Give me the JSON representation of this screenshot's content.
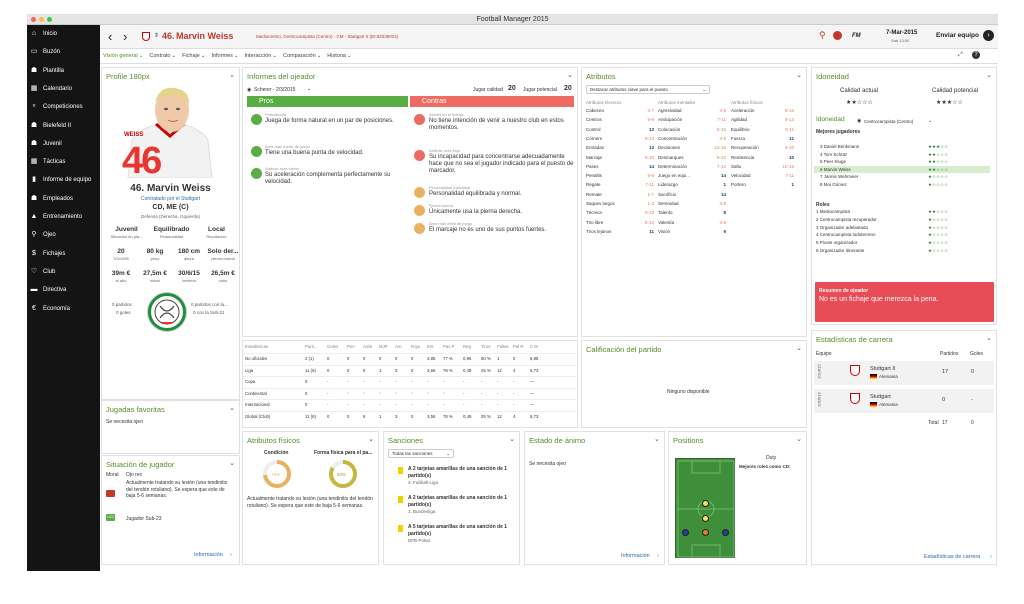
{
  "app": {
    "title": "Football Manager 2015"
  },
  "sidebar": {
    "items": [
      {
        "label": "Inicio",
        "icon": "home-icon",
        "glyph": "⌂"
      },
      {
        "label": "Buzón",
        "icon": "inbox-icon",
        "glyph": "▭"
      },
      {
        "label": "Plantilla",
        "icon": "squad-icon",
        "glyph": "☗"
      },
      {
        "label": "Calendario",
        "icon": "calendar-icon",
        "glyph": "▦"
      },
      {
        "label": "Competiciones",
        "icon": "trophy-icon",
        "glyph": "♆"
      },
      {
        "label": "Bielefeld II",
        "icon": "team-icon",
        "glyph": "☗"
      },
      {
        "label": "Juvenil",
        "icon": "youth-icon",
        "glyph": "☗"
      },
      {
        "label": "Tácticas",
        "icon": "tactics-icon",
        "glyph": "▦"
      },
      {
        "label": "Informe de equipo",
        "icon": "report-icon",
        "glyph": "▮"
      },
      {
        "label": "Empleados",
        "icon": "staff-icon",
        "glyph": "☗"
      },
      {
        "label": "Entrenamiento",
        "icon": "training-icon",
        "glyph": "▲"
      },
      {
        "label": "Ojeo",
        "icon": "scouting-icon",
        "glyph": "⚲"
      },
      {
        "label": "Fichajes",
        "icon": "transfers-icon",
        "glyph": "$"
      },
      {
        "label": "Club",
        "icon": "club-icon",
        "glyph": "♡"
      },
      {
        "label": "Directiva",
        "icon": "board-icon",
        "glyph": "▬"
      },
      {
        "label": "Economía",
        "icon": "finance-icon",
        "glyph": "€"
      }
    ]
  },
  "topbar": {
    "player_number": "46.",
    "player_name": "Marvin Weiss",
    "subtitle": "Mediocentro, Centrocampista (Centro) - CM - Stuttgart II (ID:92039024)",
    "fm_label": "FM",
    "date": "7-Mar-2015",
    "time": "Sab 13:00",
    "continue": "Enviar equipo"
  },
  "subnav": {
    "items": [
      "Visión general",
      "Contrato",
      "Fichaje",
      "Informes",
      "Interacción",
      "Comparación",
      "Historia"
    ]
  },
  "profile": {
    "title": "Profile 180px",
    "shirt_number": "46",
    "shirt_text": "WEISS",
    "name": "46. Marvin Weiss",
    "contract": "Contratado por el Stuttgart",
    "position": "CD, ME (C)",
    "foot": "Defensa (Derecha, Izquierda)",
    "traits": [
      {
        "value": "Juvenil",
        "label": "Situación en pla..."
      },
      {
        "value": "Equilibrado",
        "label": "Personalidad"
      },
      {
        "value": "Local",
        "label": "Reputación"
      }
    ],
    "physical": [
      {
        "value": "20",
        "label": "7/3/1995"
      },
      {
        "value": "80 kg",
        "label": "peso"
      },
      {
        "value": "180 cm",
        "label": "altura"
      },
      {
        "value": "Solo der...",
        "label": "pierna buena"
      }
    ],
    "money": [
      {
        "value": "39m €",
        "label": "al año"
      },
      {
        "value": "27,5m €",
        "label": "netos"
      },
      {
        "value": "30/6/15",
        "label": "termina"
      },
      {
        "value": "26,5m €",
        "label": "valor"
      }
    ],
    "left_stats": [
      "0 partidos",
      "0 goles"
    ],
    "right_stats": [
      "0 partidos con la...",
      "0 con la Sub-21"
    ]
  },
  "fav": {
    "title": "Jugadas favoritas",
    "text": "Se necesita ojeo"
  },
  "situation": {
    "title": "Situación de jugador",
    "moral_label": "Moral",
    "moral_value": "Ojo rec",
    "injury_text": "Actualmente tratando su lesión (una tendinitis del tendón rotuliano). Se espera que este de baja 5-6 semanas.",
    "u23_badge": "U23",
    "u23_text": "Jugador Sub-23",
    "info_link": "Información"
  },
  "scout": {
    "title": "Informes del ojeador",
    "scout_name": "Scherer - 2/3/2015",
    "ca_label": "Jugar calidad",
    "ca_value": "20",
    "pa_label": "Jugar potencial",
    "pa_value": "20",
    "pros_label": "Pros",
    "cons_label": "Contras",
    "pros": [
      {
        "head": "Polivalencia",
        "text": "Juega de forma natural en un par de posiciones."
      },
      {
        "head": "Área más fuerte de juego",
        "text": "Tiene una buena punta de velocidad."
      },
      {
        "head": "Atributo más fuerte",
        "text": "Su aceleración complementa perfectamente su velocidad."
      }
    ],
    "cons": [
      {
        "head": "Interés en el fichaje",
        "text": "No tiene intención de venir a nuestro club en estos momentos."
      },
      {
        "head": "Atributo más flojo",
        "text": "Su incapacidad para concentrarse adecuadamente hace que no sea el jugador indicado para el puesto de marcador."
      },
      {
        "head": "Personalidad individual",
        "text": "Personalidad equilibrada y normal."
      },
      {
        "head": "Pierna buena",
        "text": "Únicamente usa la pierna derecha."
      },
      {
        "head": "Área más débil de juego",
        "text": "El marcaje no es uno de sus puntos fuertes."
      }
    ]
  },
  "attrs": {
    "title": "Atributos",
    "dropdown": "Destacar atributos clave para el puesto",
    "headers": [
      "Atributos técnicos",
      "Atributos mentales",
      "Atributos físicos"
    ],
    "technical": [
      [
        "Cabeceo",
        "3-7"
      ],
      [
        "Centros",
        "5-9"
      ],
      [
        "Control",
        "13"
      ],
      [
        "Córners",
        "8-13"
      ],
      [
        "Entradas",
        "13"
      ],
      [
        "Marcaje",
        "5-10"
      ],
      [
        "Pases",
        "14"
      ],
      [
        "Penaltis",
        "5-9"
      ],
      [
        "Regate",
        "7-11"
      ],
      [
        "Remate",
        "1-7"
      ],
      [
        "Saques largos",
        "1-3"
      ],
      [
        "Técnica",
        "9-13"
      ],
      [
        "Tiro libre",
        "8-12"
      ],
      [
        "Tiros lejanos",
        "11"
      ]
    ],
    "mental": [
      [
        "Agresividad",
        "4-8"
      ],
      [
        "Anticipación",
        "7-11"
      ],
      [
        "Colocación",
        "5-15"
      ],
      [
        "Concentración",
        "3-8"
      ],
      [
        "Decisiones",
        "12-16"
      ],
      [
        "Desmarques",
        "8-12"
      ],
      [
        "Determinación",
        "7-12"
      ],
      [
        "Juego en equi...",
        "14"
      ],
      [
        "Liderazgo",
        "1"
      ],
      [
        "Sacrificio",
        "14"
      ],
      [
        "Serenidad",
        "3-8"
      ],
      [
        "Talento",
        "8"
      ],
      [
        "Valentía",
        "3-8"
      ],
      [
        "Visión",
        "9"
      ]
    ],
    "physical": [
      [
        "Aceleración",
        "9-13"
      ],
      [
        "Agilidad",
        "9-13"
      ],
      [
        "Equilibrio",
        "5-11"
      ],
      [
        "Fuerza",
        "11"
      ],
      [
        "Recuperación",
        "6-10"
      ],
      [
        "Resistencia",
        "10"
      ],
      [
        "Salto",
        "10-15"
      ],
      [
        "Velocidad",
        "7-11"
      ],
      [
        "Portero",
        "1"
      ]
    ]
  },
  "ability": {
    "title": "Idoneidad",
    "current_label": "Calidad actual",
    "potential_label": "Calidad potencial",
    "current_stars": 2,
    "potential_stars": 3,
    "role_label": "Idoneidad",
    "role_value": "Centrocampista (Centro)",
    "best_label": "Mejores jugadores",
    "players": [
      {
        "name": "3 Daniel Brinkmann",
        "stars": 3
      },
      {
        "name": "4 Tom Schütz",
        "stars": 2
      },
      {
        "name": "5 Peer Kluge",
        "stars": 2
      },
      {
        "name": "6 Marvin Weiss",
        "stars": 2
      },
      {
        "name": "7 Jannis Wehmeier",
        "stars": 1
      },
      {
        "name": "8 Moi Gómez",
        "stars": 1
      }
    ],
    "roles_label": "Roles",
    "roles": [
      {
        "name": "1 Mediocampista",
        "stars": 2
      },
      {
        "name": "2 Centrocampista recuperador",
        "stars": 1
      },
      {
        "name": "3 Organizador adelantado",
        "stars": 1
      },
      {
        "name": "4 Centrocampista todoterreno",
        "stars": 1
      },
      {
        "name": "5 Pivote organizador",
        "stars": 1
      },
      {
        "name": "6 Organizador itinerante",
        "stars": 1
      }
    ],
    "summary_title": "Resumen de ojeador",
    "summary_text": "No es un fichaje que merezca la pena."
  },
  "stats": {
    "headers": [
      "Estadísticas",
      "Parti...",
      "Goles",
      "Pen",
      "Asist",
      "MJP",
      "Am.",
      "Roja",
      "Ent",
      "Pas P",
      "Reg",
      "Tiros",
      "Faltas",
      "Pal R",
      "C M"
    ],
    "rows": [
      [
        "No oficiales",
        "2 (1)",
        "0",
        "0",
        "0",
        "0",
        "0",
        "0",
        "3,85",
        "77 %",
        "0,96",
        "50 %",
        "1",
        "0",
        "6,95"
      ],
      [
        "Liga",
        "11 (6)",
        "0",
        "0",
        "6",
        "1",
        "3",
        "0",
        "3,56",
        "78 %",
        "0,49",
        "25 %",
        "12",
        "4",
        "6,73"
      ],
      [
        "Copa",
        "0",
        "-",
        "-",
        "-",
        "-",
        "-",
        "-",
        "-",
        "-",
        "-",
        "-",
        "-",
        "-",
        "—"
      ],
      [
        "Continental",
        "0",
        "-",
        "-",
        "-",
        "-",
        "-",
        "-",
        "-",
        "-",
        "-",
        "-",
        "-",
        "-",
        "—"
      ],
      [
        "Internacional",
        "0",
        "-",
        "-",
        "-",
        "-",
        "-",
        "-",
        "-",
        "-",
        "-",
        "-",
        "-",
        "-",
        "—"
      ],
      [
        "Global (Club)",
        "11 (6)",
        "0",
        "0",
        "6",
        "1",
        "3",
        "0",
        "3,56",
        "78 %",
        "0,49",
        "25 %",
        "12",
        "4",
        "6,73"
      ]
    ]
  },
  "match": {
    "title": "Calificación del partido",
    "text": "Ninguno disponible"
  },
  "career": {
    "title": "Estadísticas de carrera",
    "headers": [
      "Equipo",
      "Partidos",
      "Goles"
    ],
    "rows": [
      {
        "season": "2014/15",
        "club": "Stuttgart II",
        "nation": "Alemania",
        "apps": "17",
        "goals": "0"
      },
      {
        "season": "2015/16",
        "club": "Stuttgart",
        "nation": "Alemania",
        "apps": "0",
        "goals": "-"
      }
    ],
    "total_label": "Total",
    "total_apps": "17",
    "total_goals": "0",
    "link": "Estadísticas de carrera"
  },
  "physical": {
    "title": "Atributos físicos",
    "condition_label": "Condición",
    "condition_value": "73%",
    "condition_pct": 73,
    "fitness_label": "Forma física para el pa...",
    "fitness_value": "83%",
    "fitness_pct": 83,
    "text": "Actualmente tratando su lesión (una tendinitis del tendón rotuliano). Se espera que este de baja 5-6 semanas."
  },
  "sanctions": {
    "title": "Sanciones",
    "dropdown": "Todas las sanciones",
    "items": [
      {
        "title": "A 2 tarjetas amarillas de una sanción de 1 partido(s)",
        "sub": "3. Fußball-Liga"
      },
      {
        "title": "A 2 tarjetas amarillas de una sanción de 1 partido(s)",
        "sub": "1. Bundesliga"
      },
      {
        "title": "A 5 tarjetas amarillas de una sanción de 1 partido(s)",
        "sub": "DFB-Pokal"
      }
    ]
  },
  "mood": {
    "title": "Estado de ánimo",
    "text": "Se necesita ojeo",
    "link": "Información"
  },
  "positions": {
    "title": "Positions",
    "duty_label": "Duty",
    "best_roles": "Mejores roles como CD:"
  },
  "colors": {
    "accent": "#5a8a2a",
    "pros": "#5aac44",
    "cons": "#ec6b63",
    "summary": "#e84c57",
    "sidebar": "#141414"
  }
}
